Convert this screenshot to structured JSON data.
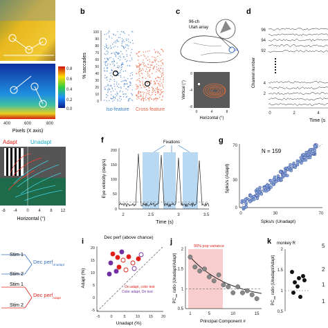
{
  "panels": {
    "b": "b",
    "c": "c",
    "d": "d",
    "f": "f",
    "g": "g",
    "i": "i",
    "j": "j",
    "k": "k"
  },
  "panel_a": {
    "heatmap_ticks": [
      "0.8",
      "0.6",
      "0.4",
      "0.2",
      "0.0"
    ],
    "xlabel": "Pixels (X axis)",
    "xticks": [
      "400",
      "600",
      "800"
    ],
    "adapt_label": "Adapt",
    "unadapt_label": "Unadapt",
    "lower_xlabel": "Horizontal (°)",
    "lower_xticks": [
      "-8",
      "-4",
      "0",
      "4",
      "8",
      "12"
    ]
  },
  "panel_b": {
    "ylabel": "% saccades",
    "yticks": [
      "100",
      "90",
      "80",
      "70",
      "60",
      "50",
      "40",
      "30",
      "20",
      "10",
      "0"
    ],
    "iso_label": "Iso-feature",
    "cross_label": "Cross feature"
  },
  "panel_c": {
    "array_label_1": "96-ch",
    "array_label_2": "Utah array",
    "area_label": "V4",
    "ylabel": "Vertical (°)",
    "xlabel": "Horizontal (°)",
    "xticks": [
      "0",
      "4",
      "8"
    ],
    "yticks": [
      "0",
      "-4",
      "-8"
    ]
  },
  "panel_d": {
    "ylabel": "Channel number",
    "channel_labels": [
      "96",
      "94",
      "92",
      "4",
      "2"
    ],
    "xlabel": "Time (s",
    "xticks": [
      "0",
      "2",
      "4"
    ]
  },
  "panel_f": {
    "ylabel": "Eye velocity (deg/s)",
    "xlabel": "Time (s)",
    "fixations_label": "Fixations",
    "yticks": [
      "200",
      "150",
      "100",
      "50",
      "0"
    ],
    "xticks": [
      "2",
      "2.5",
      "3",
      "3.5"
    ]
  },
  "panel_g": {
    "n_label": "N = 159",
    "ylabel": "Spks/s (Adapt)",
    "xlabel": "Spks/s (Unadapt)",
    "xticks": [
      "0",
      "30",
      "70"
    ],
    "yticks": [
      "70",
      "30",
      "0"
    ]
  },
  "panel_h": {
    "stim1": "Stim 1",
    "stim2": "Stim 2",
    "perf_unadapt": "Dec perf",
    "perf_unadapt_sub": "Unadapt",
    "perf_adapt": "Dec perf",
    "perf_adapt_sub": "Adapt"
  },
  "panel_i": {
    "title": "Dec perf (above chance)",
    "ylabel": "Adapt (%)",
    "xlabel": "Unadapt (%)",
    "xticks": [
      "-5",
      "0",
      "5",
      "10",
      "15",
      "20"
    ],
    "yticks": [
      "20",
      "15",
      "10",
      "5",
      "0",
      "-5"
    ],
    "legend_red": "On adapt, color test",
    "legend_purple": "Color adapt, On test"
  },
  "panel_j": {
    "shade_label": "90% pop variance",
    "ylabel_main": "PC",
    "ylabel_sub": "var",
    "ylabel_rest": " ratio (Unadapt/Adapt)",
    "xlabel": "Principal Component #",
    "yticks": [
      "2",
      "1.5",
      "1",
      "0.5"
    ],
    "xticks": [
      "1",
      "5",
      "10",
      "15"
    ]
  },
  "panel_k": {
    "title": "monkey R",
    "ylabel_main": "PC",
    "ylabel_sub": "var",
    "ylabel_rest": " ratio (Unadapt/Adapt)",
    "yticks": [
      "2",
      "1.5",
      "1",
      "0.5"
    ],
    "next_panel_digits": [
      "5",
      "2",
      "1",
      "1"
    ]
  },
  "chart_data": [
    {
      "type": "scatter",
      "panel": "g",
      "xlabel": "Spks/s (Unadapt)",
      "ylabel": "Spks/s (Adapt)",
      "xlim": [
        0,
        70
      ],
      "ylim": [
        0,
        70
      ],
      "n": 159
    },
    {
      "type": "line",
      "panel": "j",
      "xlabel": "Principal Component #",
      "x": [
        1,
        2,
        3,
        4,
        5,
        6,
        7,
        8,
        9,
        10,
        11,
        12,
        13,
        14,
        15
      ],
      "series": [
        {
          "values": [
            1.8,
            1.55,
            1.45,
            1.5,
            1.3,
            1.2,
            1.35,
            1.1,
            1.05,
            0.9,
            1.05,
            0.9,
            0.95,
            0.85,
            0.75
          ]
        }
      ],
      "ylim": [
        0.5,
        2
      ],
      "xlim": [
        0,
        16
      ]
    },
    {
      "type": "scatter",
      "panel": "k",
      "title": "monkey R",
      "values": [
        1.45,
        1.3,
        1.2,
        1.35,
        1.1,
        0.95,
        0.85,
        1.25
      ],
      "ylim": [
        0.5,
        2
      ]
    }
  ]
}
